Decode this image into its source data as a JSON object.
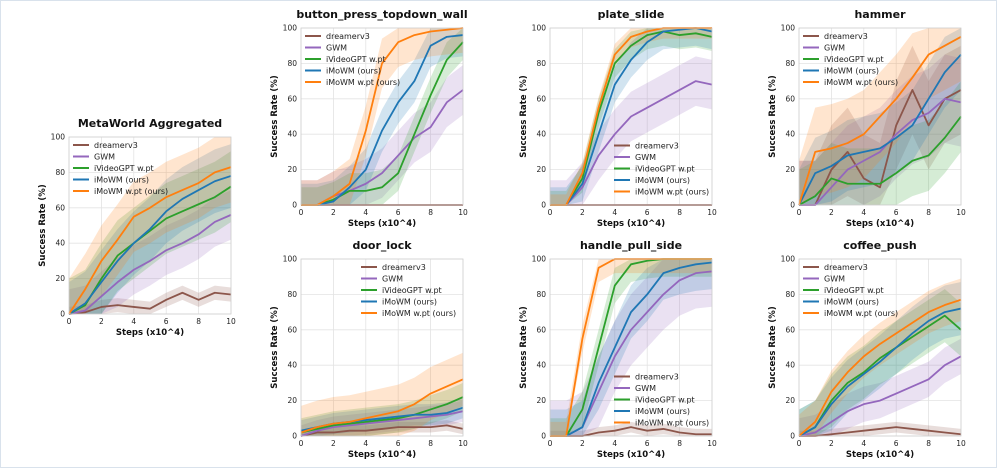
{
  "colors": {
    "dreamerv3": "#8c564b",
    "GWM": "#9467bd",
    "iVideoGPT w.pt": "#2ca02c",
    "iMoWM (ours)": "#1f77b4",
    "iMoWM w.pt (ours)": "#ff7f0e"
  },
  "chart_data": [
    {
      "id": "metaworld_aggregated",
      "type": "line",
      "title": "MetaWorld Aggregated",
      "xlabel": "Steps (x10^4)",
      "ylabel": "Success Rate (%)",
      "xlim": [
        0,
        10
      ],
      "ylim": [
        0,
        100
      ],
      "xticks": [
        "0",
        "2",
        "4",
        "6",
        "8",
        "10"
      ],
      "yticks": [
        "0",
        "20",
        "40",
        "60",
        "80",
        "100"
      ],
      "grid": true,
      "legend_position": "top-left",
      "x": [
        0,
        1,
        2,
        3,
        4,
        5,
        6,
        7,
        8,
        9,
        10
      ],
      "series": [
        {
          "name": "dreamerv3",
          "values": [
            0,
            1,
            4,
            5,
            4,
            3,
            8,
            12,
            8,
            12,
            11
          ],
          "band": 4
        },
        {
          "name": "GWM",
          "values": [
            0,
            2,
            10,
            18,
            25,
            30,
            36,
            40,
            45,
            52,
            56
          ],
          "band": 14
        },
        {
          "name": "iVideoGPT w.pt",
          "values": [
            0,
            5,
            20,
            33,
            40,
            47,
            54,
            58,
            62,
            66,
            72
          ],
          "band": 20
        },
        {
          "name": "iMoWM (ours)",
          "values": [
            0,
            6,
            18,
            30,
            40,
            48,
            58,
            65,
            70,
            75,
            78
          ],
          "band": 18
        },
        {
          "name": "iMoWM w.pt (ours)",
          "values": [
            0,
            14,
            30,
            42,
            55,
            60,
            66,
            70,
            74,
            80,
            83
          ],
          "band": 20
        }
      ]
    },
    {
      "id": "button_press_topdown_wall",
      "type": "line",
      "title": "button_press_topdown_wall",
      "xlabel": "Steps (x10^4)",
      "ylabel": "Success Rate (%)",
      "xlim": [
        0,
        10
      ],
      "ylim": [
        0,
        100
      ],
      "xticks": [
        "0",
        "2",
        "4",
        "6",
        "8",
        "10"
      ],
      "yticks": [
        "0",
        "20",
        "40",
        "60",
        "80",
        "100"
      ],
      "grid": true,
      "legend_position": "top-left",
      "x": [
        0,
        1,
        2,
        3,
        4,
        5,
        6,
        7,
        8,
        9,
        10
      ],
      "series": [
        {
          "name": "dreamerv3",
          "values": [
            0,
            0,
            0,
            0,
            0,
            0,
            0,
            0,
            0,
            0,
            0
          ],
          "band": 0
        },
        {
          "name": "GWM",
          "values": [
            0,
            0,
            5,
            8,
            12,
            18,
            28,
            38,
            44,
            58,
            65
          ],
          "band": 14
        },
        {
          "name": "iVideoGPT w.pt",
          "values": [
            0,
            0,
            3,
            8,
            8,
            10,
            18,
            40,
            62,
            82,
            92
          ],
          "band": 10
        },
        {
          "name": "iMoWM (ours)",
          "values": [
            0,
            0,
            2,
            10,
            20,
            42,
            58,
            70,
            90,
            95,
            96
          ],
          "band": 12
        },
        {
          "name": "iMoWM w.pt (ours)",
          "values": [
            0,
            0,
            5,
            12,
            42,
            80,
            92,
            96,
            98,
            99,
            100
          ],
          "band": 14
        }
      ]
    },
    {
      "id": "plate_slide",
      "type": "line",
      "title": "plate_slide",
      "xlabel": "Steps (x10^4)",
      "ylabel": "Success Rate (%)",
      "xlim": [
        0,
        10
      ],
      "ylim": [
        0,
        100
      ],
      "xticks": [
        "0",
        "2",
        "4",
        "6",
        "8",
        "10"
      ],
      "yticks": [
        "0",
        "20",
        "40",
        "60",
        "80",
        "100"
      ],
      "grid": true,
      "legend_position": "bottom-right",
      "x": [
        0,
        1,
        2,
        3,
        4,
        5,
        6,
        7,
        8,
        9,
        10
      ],
      "series": [
        {
          "name": "dreamerv3",
          "values": [
            0,
            0,
            0,
            0,
            0,
            0,
            0,
            0,
            0,
            0,
            0
          ],
          "band": 0
        },
        {
          "name": "GWM",
          "values": [
            0,
            0,
            10,
            28,
            40,
            50,
            55,
            60,
            65,
            70,
            68
          ],
          "band": 14
        },
        {
          "name": "iVideoGPT w.pt",
          "values": [
            0,
            0,
            15,
            52,
            80,
            90,
            96,
            98,
            96,
            97,
            95
          ],
          "band": 8
        },
        {
          "name": "iMoWM (ours)",
          "values": [
            0,
            0,
            12,
            40,
            68,
            82,
            92,
            98,
            99,
            100,
            98
          ],
          "band": 10
        },
        {
          "name": "iMoWM w.pt (ours)",
          "values": [
            0,
            0,
            18,
            55,
            85,
            95,
            98,
            100,
            100,
            100,
            100
          ],
          "band": 6
        }
      ]
    },
    {
      "id": "hammer",
      "type": "line",
      "title": "hammer",
      "xlabel": "Steps (x10^4)",
      "ylabel": "Success Rate (%)",
      "xlim": [
        0,
        10
      ],
      "ylim": [
        0,
        100
      ],
      "xticks": [
        "0",
        "2",
        "4",
        "6",
        "8",
        "10"
      ],
      "yticks": [
        "0",
        "20",
        "40",
        "60",
        "80",
        "100"
      ],
      "grid": true,
      "legend_position": "top-left",
      "x": [
        0,
        1,
        2,
        3,
        4,
        5,
        6,
        7,
        8,
        9,
        10
      ],
      "series": [
        {
          "name": "dreamerv3",
          "values": [
            0,
            0,
            20,
            30,
            15,
            10,
            45,
            65,
            45,
            60,
            65
          ],
          "band": 25
        },
        {
          "name": "GWM",
          "values": [
            0,
            0,
            10,
            20,
            25,
            30,
            40,
            48,
            52,
            60,
            58
          ],
          "band": 25
        },
        {
          "name": "iVideoGPT w.pt",
          "values": [
            0,
            5,
            15,
            12,
            12,
            12,
            18,
            25,
            28,
            38,
            50
          ],
          "band": 20
        },
        {
          "name": "iMoWM (ours)",
          "values": [
            0,
            18,
            22,
            28,
            30,
            32,
            38,
            45,
            60,
            75,
            85
          ],
          "band": 20
        },
        {
          "name": "iMoWM w.pt (ours)",
          "values": [
            0,
            30,
            32,
            35,
            40,
            50,
            60,
            72,
            85,
            90,
            95
          ],
          "band": 25
        }
      ]
    },
    {
      "id": "door_lock",
      "type": "line",
      "title": "door_lock",
      "xlabel": "Steps (x10^4)",
      "ylabel": "Success Rate (%)",
      "xlim": [
        0,
        10
      ],
      "ylim": [
        0,
        100
      ],
      "xticks": [
        "0",
        "2",
        "4",
        "6",
        "8",
        "10"
      ],
      "yticks": [
        "0",
        "20",
        "40",
        "60",
        "80",
        "100"
      ],
      "grid": true,
      "legend_position": "top-right",
      "x": [
        0,
        1,
        2,
        3,
        4,
        5,
        6,
        7,
        8,
        9,
        10
      ],
      "series": [
        {
          "name": "dreamerv3",
          "values": [
            0,
            2,
            2,
            3,
            3,
            4,
            5,
            5,
            5,
            6,
            4
          ],
          "band": 3
        },
        {
          "name": "GWM",
          "values": [
            0,
            3,
            5,
            6,
            7,
            8,
            9,
            10,
            11,
            12,
            14
          ],
          "band": 6
        },
        {
          "name": "iVideoGPT w.pt",
          "values": [
            2,
            4,
            6,
            7,
            8,
            9,
            10,
            12,
            15,
            18,
            22
          ],
          "band": 8
        },
        {
          "name": "iMoWM (ours)",
          "values": [
            3,
            5,
            7,
            8,
            9,
            10,
            11,
            12,
            12,
            13,
            16
          ],
          "band": 6
        },
        {
          "name": "iMoWM w.pt (ours)",
          "values": [
            2,
            5,
            7,
            8,
            10,
            12,
            14,
            18,
            24,
            28,
            32
          ],
          "band": 15
        }
      ]
    },
    {
      "id": "handle_pull_side",
      "type": "line",
      "title": "handle_pull_side",
      "xlabel": "Steps (x10^4)",
      "ylabel": "Success Rate (%)",
      "xlim": [
        0,
        10
      ],
      "ylim": [
        0,
        100
      ],
      "xticks": [
        "0",
        "2",
        "4",
        "6",
        "8",
        "10"
      ],
      "yticks": [
        "0",
        "20",
        "40",
        "60",
        "80",
        "100"
      ],
      "grid": true,
      "legend_position": "bottom-right",
      "x": [
        0,
        1,
        2,
        3,
        4,
        5,
        6,
        7,
        8,
        9,
        10
      ],
      "series": [
        {
          "name": "dreamerv3",
          "values": [
            0,
            0,
            0,
            2,
            3,
            5,
            3,
            4,
            2,
            1,
            1
          ],
          "band": 3
        },
        {
          "name": "GWM",
          "values": [
            0,
            0,
            5,
            25,
            45,
            60,
            70,
            80,
            88,
            92,
            93
          ],
          "band": 20
        },
        {
          "name": "iVideoGPT w.pt",
          "values": [
            0,
            0,
            15,
            50,
            85,
            97,
            99,
            100,
            100,
            100,
            100
          ],
          "band": 10
        },
        {
          "name": "iMoWM (ours)",
          "values": [
            0,
            0,
            5,
            30,
            50,
            70,
            80,
            92,
            95,
            97,
            98
          ],
          "band": 15
        },
        {
          "name": "iMoWM w.pt (ours)",
          "values": [
            0,
            0,
            55,
            95,
            100,
            100,
            100,
            100,
            100,
            100,
            100
          ],
          "band": 8
        }
      ]
    },
    {
      "id": "coffee_push",
      "type": "line",
      "title": "coffee_push",
      "xlabel": "Steps (x10^4)",
      "ylabel": "Success Rate (%)",
      "xlim": [
        0,
        10
      ],
      "ylim": [
        0,
        100
      ],
      "xticks": [
        "0",
        "2",
        "4",
        "6",
        "8",
        "10"
      ],
      "yticks": [
        "0",
        "20",
        "40",
        "60",
        "80",
        "100"
      ],
      "grid": true,
      "legend_position": "top-left",
      "x": [
        0,
        1,
        2,
        3,
        4,
        5,
        6,
        7,
        8,
        9,
        10
      ],
      "series": [
        {
          "name": "dreamerv3",
          "values": [
            0,
            0,
            1,
            2,
            3,
            4,
            5,
            4,
            3,
            2,
            1
          ],
          "band": 3
        },
        {
          "name": "GWM",
          "values": [
            0,
            2,
            8,
            14,
            18,
            20,
            24,
            28,
            32,
            40,
            45
          ],
          "band": 10
        },
        {
          "name": "iVideoGPT w.pt",
          "values": [
            0,
            5,
            20,
            30,
            36,
            44,
            50,
            56,
            62,
            68,
            60
          ],
          "band": 15
        },
        {
          "name": "iMoWM (ours)",
          "values": [
            0,
            5,
            18,
            28,
            35,
            42,
            50,
            58,
            65,
            70,
            72
          ],
          "band": 15
        },
        {
          "name": "iMoWM w.pt (ours)",
          "values": [
            0,
            8,
            25,
            36,
            45,
            52,
            58,
            64,
            70,
            74,
            77
          ],
          "band": 12
        }
      ]
    }
  ]
}
